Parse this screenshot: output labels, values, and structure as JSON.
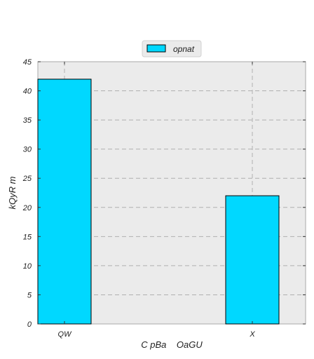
{
  "chart_data": {
    "type": "bar",
    "categories": [
      "QW",
      "X"
    ],
    "series": [
      {
        "name": "opnat",
        "values": [
          42,
          22
        ]
      }
    ],
    "xlabel": "C pBa    OaGU",
    "ylabel": "kQyR m",
    "ylim": [
      0,
      45
    ],
    "yticks": [
      0,
      5,
      10,
      15,
      20,
      25,
      30,
      35,
      40,
      45
    ],
    "grid": true,
    "legend_position": "top-center",
    "colors": {
      "bar": "#00d8ff",
      "plot_background": "#ebebeb",
      "grid": "#b0b0b0",
      "edge": "#000000"
    }
  }
}
